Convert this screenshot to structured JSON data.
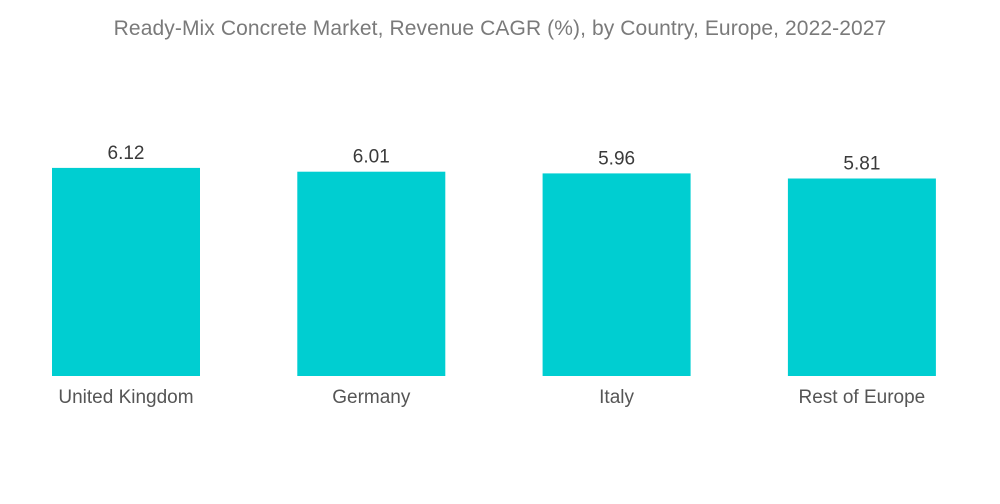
{
  "chart_data": {
    "type": "bar",
    "title": "Ready-Mix Concrete Market, Revenue CAGR (%), by Country, Europe, 2022-2027",
    "categories": [
      "United Kingdom",
      "Germany",
      "Italy",
      "Rest of Europe"
    ],
    "values": [
      6.12,
      6.01,
      5.96,
      5.81
    ],
    "value_labels": [
      "6.12",
      "6.01",
      "5.96",
      "5.81"
    ],
    "xlabel": "",
    "ylabel": "",
    "grid": false,
    "legend": "none",
    "bar_color": "#00CED1"
  }
}
